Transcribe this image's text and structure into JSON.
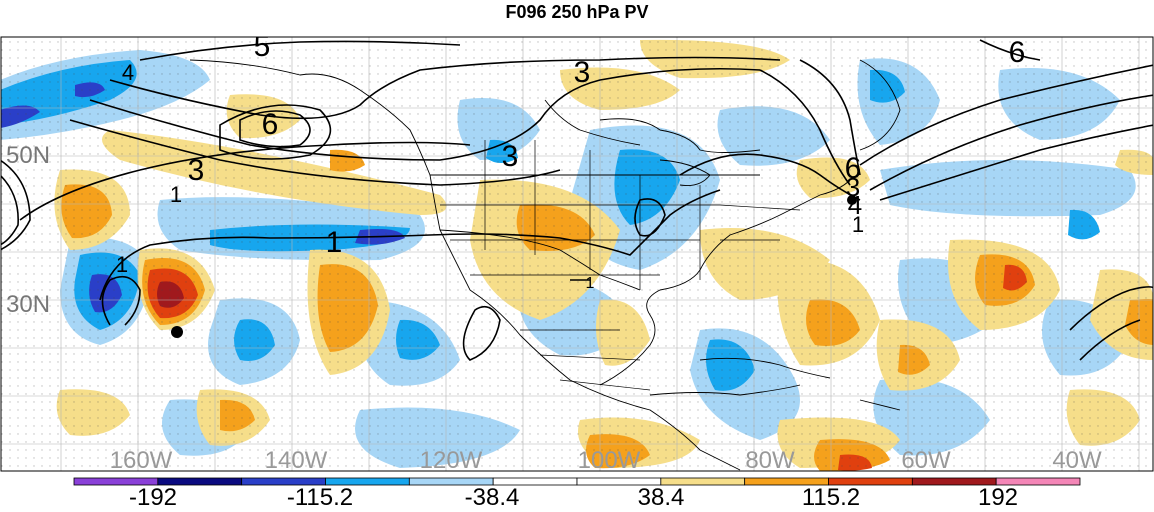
{
  "title": "F096 250 hPa PV",
  "latitude_labels": [
    "50N",
    "30N"
  ],
  "longitude_labels": [
    "160W",
    "140W",
    "120W",
    "100W",
    "80W",
    "60W",
    "40W"
  ],
  "contour_labels": [
    "5",
    "4",
    "3",
    "3",
    "6",
    "6",
    "3",
    "1",
    "1",
    "1",
    "6",
    "3",
    "4",
    "1",
    "1"
  ],
  "colorbar": {
    "tick_labels": [
      "-192",
      "-115.2",
      "-38.4",
      "38.4",
      "115.2",
      "192"
    ],
    "colors": [
      "#8a40d8",
      "#0a0a80",
      "#2a3fc8",
      "#17a6ee",
      "#a7d6f6",
      "#ffffff",
      "#ffffff",
      "#f6de8a",
      "#f5a11c",
      "#e0400f",
      "#a0191d",
      "#f486b7"
    ]
  },
  "colors": {
    "neg_strong": "#2a3fc8",
    "neg_mid": "#17a6ee",
    "neg_weak": "#a7d6f6",
    "pos_weak": "#f6de8a",
    "pos_mid": "#f5a11c",
    "pos_strong": "#e0400f",
    "pos_max": "#a0191d"
  }
}
